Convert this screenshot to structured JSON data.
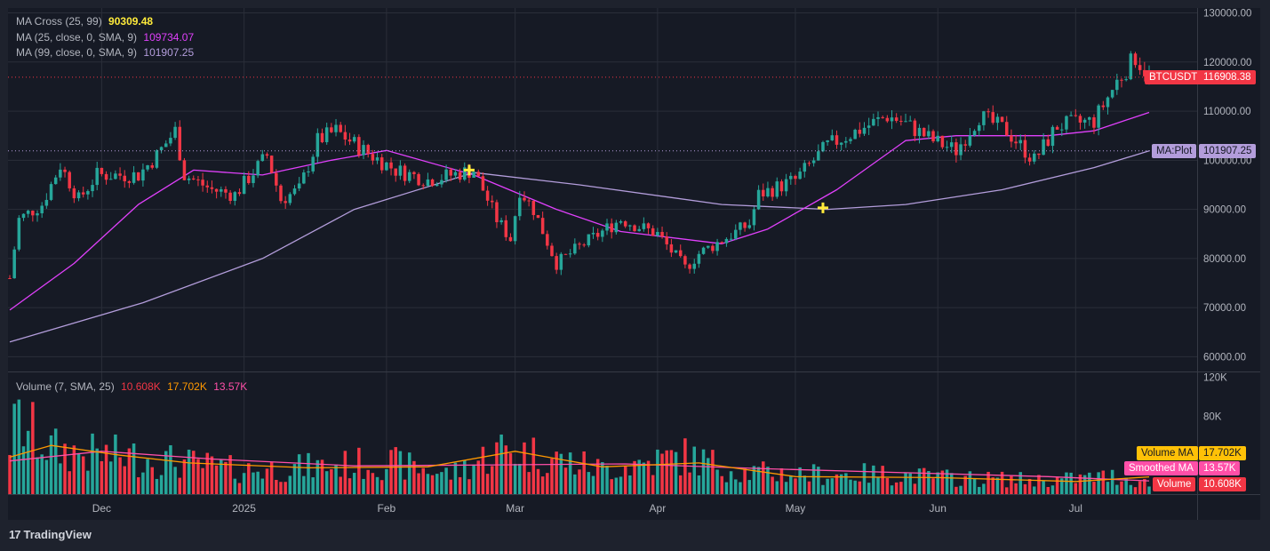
{
  "legend": {
    "ma_cross": {
      "label": "MA Cross (25, 99)",
      "value": "90309.48",
      "color": "#ffeb3b"
    },
    "ma25": {
      "label": "MA (25, close, 0, SMA, 9)",
      "value": "109734.07",
      "color": "#e040fb"
    },
    "ma99": {
      "label": "MA (99, close, 0, SMA, 9)",
      "value": "101907.25",
      "color": "#b39ddb"
    },
    "volume": {
      "label": "Volume (7, SMA, 25)",
      "v1": "10.608K",
      "v2": "17.702K",
      "v3": "13.57K",
      "c1": "#f23645",
      "c2": "#ff9800",
      "c3": "#ff4fa8"
    }
  },
  "tags": {
    "symbol": "BTCUSDT",
    "symbol_price": "116908.38",
    "ma_plot_label": "MA:Plot",
    "ma_plot_value": "101907.25",
    "volume_ma_label": "Volume MA",
    "volume_ma_value": "17.702K",
    "smoothed_ma_label": "Smoothed MA",
    "smoothed_ma_value": "13.57K",
    "volume_label": "Volume",
    "volume_value": "10.608K"
  },
  "brand": "TradingView",
  "colors": {
    "up": "#26a69a",
    "down": "#f23645",
    "bg": "#1e222d",
    "plot_bg": "#161a25",
    "grid": "#2a2e39"
  },
  "chart_data": [
    {
      "type": "candlestick",
      "symbol": "BTCUSDT",
      "interval": "1D",
      "x_tick_labels": [
        "Dec",
        "2025",
        "Feb",
        "Mar",
        "Apr",
        "May",
        "Jun",
        "Jul"
      ],
      "y_tick_labels": [
        "130000.00",
        "120000.00",
        "110000.00",
        "100000.00",
        "90000.00",
        "80000.00",
        "70000.00",
        "60000.00"
      ],
      "ylim": [
        57000,
        131000
      ],
      "grid": true,
      "close_anchors": [
        [
          "2024-11-11",
          76000
        ],
        [
          "2024-11-13",
          88000
        ],
        [
          "2024-11-18",
          91000
        ],
        [
          "2024-11-22",
          99000
        ],
        [
          "2024-11-26",
          92000
        ],
        [
          "2024-11-30",
          97000
        ],
        [
          "2024-12-05",
          97000
        ],
        [
          "2024-12-09",
          97000
        ],
        [
          "2024-12-13",
          101000
        ],
        [
          "2024-12-17",
          106000
        ],
        [
          "2024-12-19",
          97000
        ],
        [
          "2024-12-25",
          94000
        ],
        [
          "2024-12-30",
          93000
        ],
        [
          "2025-01-06",
          101000
        ],
        [
          "2025-01-09",
          92000
        ],
        [
          "2025-01-13",
          94000
        ],
        [
          "2025-01-17",
          104000
        ],
        [
          "2025-01-21",
          106000
        ],
        [
          "2025-01-27",
          102000
        ],
        [
          "2025-02-03",
          98000
        ],
        [
          "2025-02-10",
          96000
        ],
        [
          "2025-02-20",
          98000
        ],
        [
          "2025-02-25",
          88000
        ],
        [
          "2025-02-28",
          84000
        ],
        [
          "2025-03-02",
          94000
        ],
        [
          "2025-03-05",
          90000
        ],
        [
          "2025-03-10",
          79000
        ],
        [
          "2025-03-16",
          83000
        ],
        [
          "2025-03-24",
          88000
        ],
        [
          "2025-04-01",
          85000
        ],
        [
          "2025-04-07",
          78000
        ],
        [
          "2025-04-10",
          81000
        ],
        [
          "2025-04-21",
          87000
        ],
        [
          "2025-04-23",
          93000
        ],
        [
          "2025-05-01",
          96000
        ],
        [
          "2025-05-08",
          103000
        ],
        [
          "2025-05-21",
          109000
        ],
        [
          "2025-05-24",
          108000
        ],
        [
          "2025-05-31",
          104000
        ],
        [
          "2025-06-05",
          102000
        ],
        [
          "2025-06-10",
          109000
        ],
        [
          "2025-06-16",
          106000
        ],
        [
          "2025-06-22",
          100000
        ],
        [
          "2025-06-27",
          107000
        ],
        [
          "2025-07-05",
          108000
        ],
        [
          "2025-07-10",
          116000
        ],
        [
          "2025-07-14",
          121000
        ],
        [
          "2025-07-17",
          117000
        ]
      ],
      "series": [
        {
          "name": "MA (25, close, 0, SMA, 9)",
          "color": "#e040fb",
          "points": [
            [
              "2024-11-11",
              69500
            ],
            [
              "2024-11-25",
              79000
            ],
            [
              "2024-12-09",
              91000
            ],
            [
              "2024-12-21",
              98000
            ],
            [
              "2025-01-05",
              97000
            ],
            [
              "2025-01-20",
              100000
            ],
            [
              "2025-02-01",
              102000
            ],
            [
              "2025-02-20",
              97000
            ],
            [
              "2025-03-10",
              90000
            ],
            [
              "2025-03-24",
              85500
            ],
            [
              "2025-04-15",
              83000
            ],
            [
              "2025-04-25",
              86000
            ],
            [
              "2025-05-10",
              94000
            ],
            [
              "2025-05-25",
              104000
            ],
            [
              "2025-06-05",
              105000
            ],
            [
              "2025-06-25",
              105000
            ],
            [
              "2025-07-05",
              106000
            ],
            [
              "2025-07-17",
              109734
            ]
          ]
        },
        {
          "name": "MA (99, close, 0, SMA, 9)",
          "color": "#b39ddb",
          "points": [
            [
              "2024-11-11",
              63000
            ],
            [
              "2024-12-10",
              71000
            ],
            [
              "2025-01-05",
              80000
            ],
            [
              "2025-01-25",
              90000
            ],
            [
              "2025-02-20",
              97500
            ],
            [
              "2025-03-15",
              95000
            ],
            [
              "2025-04-15",
              91000
            ],
            [
              "2025-05-08",
              90000
            ],
            [
              "2025-05-25",
              91000
            ],
            [
              "2025-06-15",
              94000
            ],
            [
              "2025-07-05",
              98500
            ],
            [
              "2025-07-17",
              101907
            ]
          ]
        }
      ],
      "cross_markers": [
        [
          "2025-02-19",
          98000
        ],
        [
          "2025-05-07",
          90309
        ]
      ],
      "last_price": 116908.38
    },
    {
      "type": "bar",
      "title": "Volume (7, SMA, 25)",
      "y_tick_labels": [
        "120K",
        "80K"
      ],
      "ylim": [
        0,
        125000
      ],
      "volume_anchors": [
        [
          "2024-11-11",
          55000
        ],
        [
          "2024-11-13",
          72000
        ],
        [
          "2024-11-20",
          45000
        ],
        [
          "2024-11-28",
          40000
        ],
        [
          "2024-12-06",
          38000
        ],
        [
          "2024-12-16",
          33000
        ],
        [
          "2024-12-31",
          24000
        ],
        [
          "2025-01-15",
          27000
        ],
        [
          "2025-02-01",
          32000
        ],
        [
          "2025-02-15",
          20000
        ],
        [
          "2025-02-26",
          45000
        ],
        [
          "2025-03-05",
          40000
        ],
        [
          "2025-03-20",
          25000
        ],
        [
          "2025-04-07",
          38000
        ],
        [
          "2025-04-20",
          22000
        ],
        [
          "2025-05-05",
          20000
        ],
        [
          "2025-05-20",
          20000
        ],
        [
          "2025-06-05",
          16000
        ],
        [
          "2025-06-25",
          14000
        ],
        [
          "2025-07-10",
          18000
        ],
        [
          "2025-07-17",
          10608
        ]
      ],
      "series": [
        {
          "name": "Volume MA",
          "color": "#ff9800",
          "points": [
            [
              "2024-11-11",
              38000
            ],
            [
              "2024-11-20",
              50000
            ],
            [
              "2024-12-05",
              40000
            ],
            [
              "2024-12-20",
              32000
            ],
            [
              "2025-01-15",
              27000
            ],
            [
              "2025-02-10",
              28000
            ],
            [
              "2025-03-01",
              44000
            ],
            [
              "2025-03-20",
              28000
            ],
            [
              "2025-04-10",
              32000
            ],
            [
              "2025-05-01",
              18000
            ],
            [
              "2025-06-01",
              17000
            ],
            [
              "2025-07-01",
              13000
            ],
            [
              "2025-07-17",
              17702
            ]
          ]
        },
        {
          "name": "Smoothed MA",
          "color": "#ff4fa8",
          "points": [
            [
              "2024-11-11",
              34000
            ],
            [
              "2024-12-01",
              44000
            ],
            [
              "2024-12-25",
              36000
            ],
            [
              "2025-01-25",
              29000
            ],
            [
              "2025-02-25",
              30000
            ],
            [
              "2025-03-25",
              31000
            ],
            [
              "2025-04-25",
              26000
            ],
            [
              "2025-05-25",
              22000
            ],
            [
              "2025-06-25",
              18000
            ],
            [
              "2025-07-17",
              13570
            ]
          ]
        }
      ]
    }
  ]
}
